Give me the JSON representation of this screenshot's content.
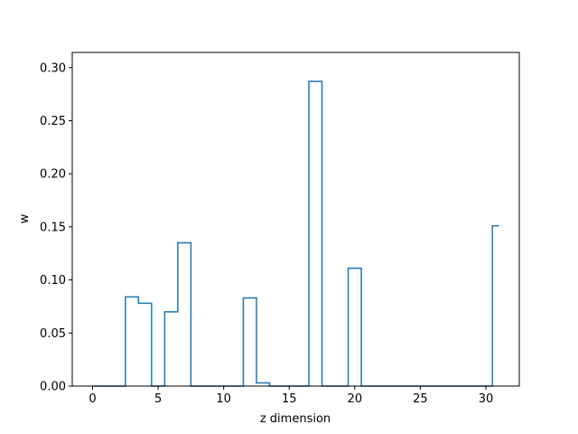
{
  "chart_data": {
    "type": "line",
    "drawstyle": "steps-mid",
    "xlabel": "z dimension",
    "ylabel": "w",
    "xlim": [
      -1.55,
      32.55
    ],
    "ylim": [
      0.0,
      0.3143
    ],
    "x": [
      0,
      1,
      2,
      3,
      4,
      5,
      6,
      7,
      8,
      9,
      10,
      11,
      12,
      13,
      14,
      15,
      16,
      17,
      18,
      19,
      20,
      21,
      22,
      23,
      24,
      25,
      26,
      27,
      28,
      29,
      30,
      31
    ],
    "series": [
      {
        "color": "#1f77b4",
        "values": [
          0,
          0,
          0,
          0.084,
          0.078,
          0,
          0.07,
          0.135,
          0,
          0,
          0,
          0,
          0.083,
          0.003,
          0,
          0,
          0,
          0.287,
          0,
          0,
          0.111,
          0,
          0,
          0,
          0,
          0,
          0,
          0,
          0,
          0,
          0,
          0.151
        ]
      }
    ],
    "x_ticks": [
      0,
      5,
      10,
      15,
      20,
      25,
      30
    ],
    "x_tick_labels": [
      "0",
      "5",
      "10",
      "15",
      "20",
      "25",
      "30"
    ],
    "y_ticks": [
      0.0,
      0.05,
      0.1,
      0.15,
      0.2,
      0.25,
      0.3
    ],
    "y_tick_labels": [
      "0.00",
      "0.05",
      "0.10",
      "0.15",
      "0.20",
      "0.25",
      "0.30"
    ],
    "grid": false,
    "legend": false
  }
}
